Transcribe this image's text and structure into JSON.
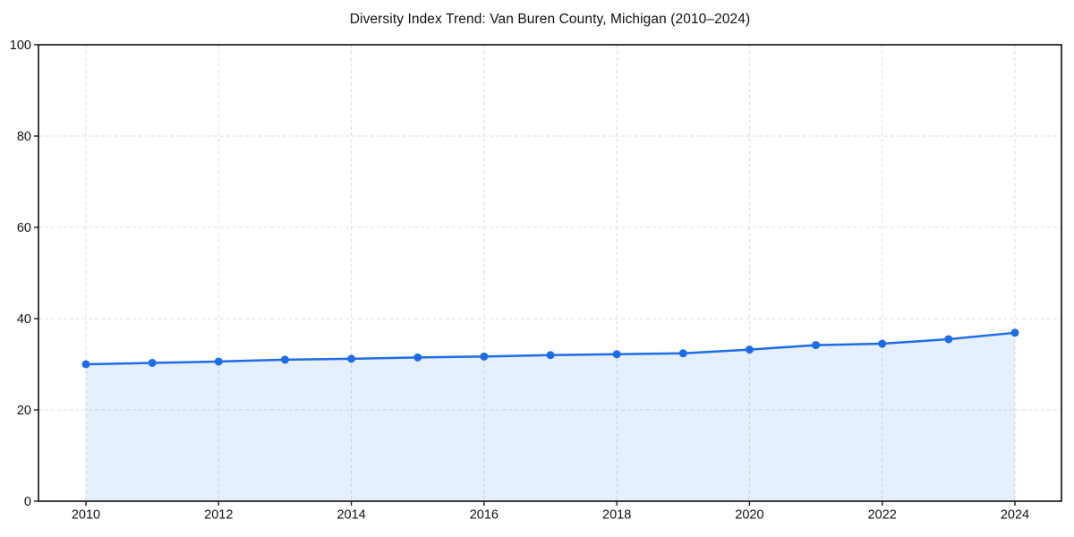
{
  "chart_data": {
    "type": "line",
    "title": "Diversity Index Trend: Van Buren County, Michigan (2010–2024)",
    "x": [
      2010,
      2011,
      2012,
      2013,
      2014,
      2015,
      2016,
      2017,
      2018,
      2019,
      2020,
      2021,
      2022,
      2023,
      2024
    ],
    "series": [
      {
        "name": "Diversity Index",
        "values": [
          30.0,
          30.3,
          30.6,
          31.0,
          31.2,
          31.5,
          31.7,
          32.0,
          32.2,
          32.4,
          33.2,
          34.2,
          34.5,
          35.5,
          36.9
        ]
      }
    ],
    "xlabel": "",
    "ylabel": "",
    "xticks": [
      2010,
      2012,
      2014,
      2016,
      2018,
      2020,
      2022,
      2024
    ],
    "yticks": [
      0,
      20,
      40,
      60,
      80,
      100
    ],
    "ylim": [
      0,
      100
    ],
    "grid": "dashed",
    "legend_position": "none",
    "marker": "circle",
    "area_fill": true,
    "colors": {
      "line": "#1f6ce8",
      "marker": "#1f6ce8",
      "area_fill": "rgba(31,108,232,0.11)",
      "grid": "#dcdcdc",
      "spine": "#1a1a1a",
      "text": "#111111"
    }
  }
}
